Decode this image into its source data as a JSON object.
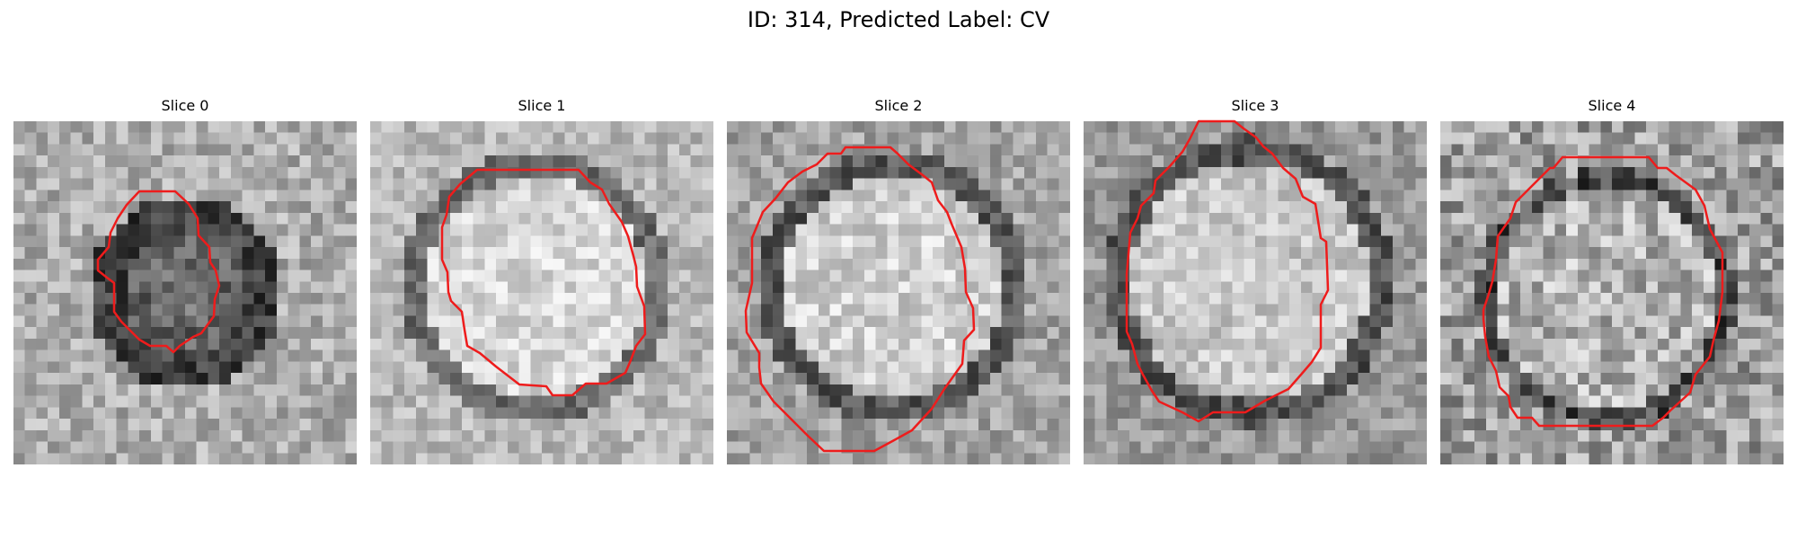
{
  "title": "ID: 314, Predicted Label: CV",
  "contour_color": "#ee1c1c",
  "slices": [
    {
      "label": "Slice 0"
    },
    {
      "label": "Slice 1"
    },
    {
      "label": "Slice 2"
    },
    {
      "label": "Slice 3"
    },
    {
      "label": "Slice 4"
    }
  ]
}
